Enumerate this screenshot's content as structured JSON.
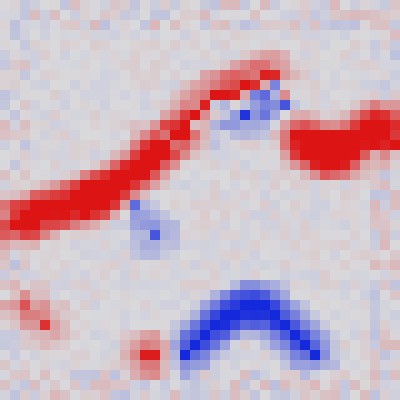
{
  "image": {
    "kind": "pixelated saliency / attribution heatmap",
    "grid": {
      "cols": 40,
      "rows": 40
    },
    "colors": {
      "neutral": "#d9d9dc",
      "positive": "#dc1414",
      "negative": "#1428dc"
    },
    "strokes": [
      {
        "name": "upper-contour",
        "polarity": "positive",
        "cells": [
          [
            1,
            22
          ],
          [
            2,
            21
          ],
          [
            3,
            21
          ],
          [
            4,
            21
          ],
          [
            5,
            20
          ],
          [
            6,
            20
          ],
          [
            7,
            20
          ],
          [
            8,
            20
          ],
          [
            9,
            19
          ],
          [
            10,
            19
          ],
          [
            11,
            18
          ],
          [
            12,
            18
          ],
          [
            13,
            17
          ],
          [
            14,
            16
          ],
          [
            15,
            15
          ],
          [
            16,
            14
          ],
          [
            17,
            13
          ],
          [
            18,
            12
          ],
          [
            19,
            11
          ],
          [
            20,
            10
          ],
          [
            21,
            9
          ],
          [
            22,
            9
          ],
          [
            23,
            9
          ],
          [
            24,
            8
          ],
          [
            25,
            8
          ],
          [
            26,
            7
          ],
          [
            27,
            7
          ],
          [
            28,
            9
          ],
          [
            29,
            11
          ],
          [
            30,
            13
          ],
          [
            31,
            14
          ],
          [
            32,
            15
          ],
          [
            33,
            15
          ],
          [
            34,
            14
          ],
          [
            35,
            13
          ],
          [
            36,
            13
          ],
          [
            37,
            12
          ],
          [
            38,
            12
          ],
          [
            39,
            14
          ]
        ]
      },
      {
        "name": "peak-dots",
        "polarity": "positive",
        "cells": [
          [
            9,
            19
          ],
          [
            10,
            19
          ],
          [
            13,
            17
          ],
          [
            15,
            14
          ],
          [
            16,
            14
          ],
          [
            17,
            13
          ],
          [
            18,
            13
          ],
          [
            29,
            13
          ],
          [
            30,
            14
          ],
          [
            31,
            15
          ],
          [
            33,
            15
          ],
          [
            34,
            15
          ],
          [
            38,
            12
          ],
          [
            1,
            22
          ],
          [
            4,
            32
          ],
          [
            2,
            30
          ],
          [
            14,
            35
          ],
          [
            15,
            35
          ]
        ]
      },
      {
        "name": "upper-blue-edge",
        "polarity": "negative",
        "cells": [
          [
            16,
            13
          ],
          [
            17,
            14
          ],
          [
            19,
            12
          ],
          [
            21,
            10
          ],
          [
            22,
            10
          ],
          [
            24,
            11
          ],
          [
            25,
            9
          ],
          [
            26,
            9
          ],
          [
            27,
            8
          ],
          [
            28,
            10
          ],
          [
            29,
            11
          ],
          [
            13,
            20
          ],
          [
            15,
            23
          ]
        ]
      },
      {
        "name": "lower-arc",
        "polarity": "negative",
        "cells": [
          [
            18,
            35
          ],
          [
            19,
            34
          ],
          [
            20,
            33
          ],
          [
            21,
            32
          ],
          [
            22,
            31
          ],
          [
            23,
            31
          ],
          [
            24,
            30
          ],
          [
            25,
            30
          ],
          [
            26,
            30
          ],
          [
            27,
            31
          ],
          [
            28,
            32
          ],
          [
            29,
            33
          ],
          [
            30,
            34
          ],
          [
            31,
            35
          ]
        ]
      }
    ]
  }
}
